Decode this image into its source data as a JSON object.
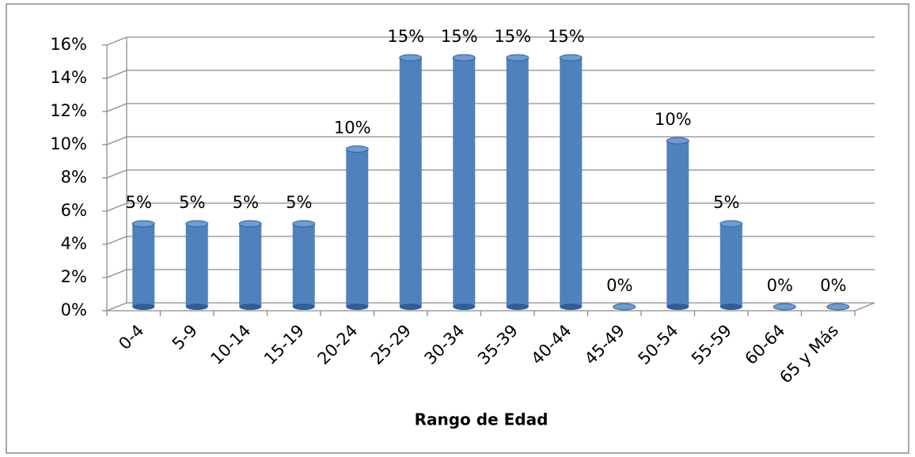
{
  "chart_data": {
    "type": "bar",
    "x_label": "Rango de Edad",
    "categories": [
      "0-4",
      "5-9",
      "10-14",
      "15-19",
      "20-24",
      "25-29",
      "30-34",
      "35-39",
      "40-44",
      "45-49",
      "50-54",
      "55-59",
      "60-64",
      "65 y Más"
    ],
    "values": [
      5,
      5,
      5,
      5,
      9.5,
      15,
      15,
      15,
      15,
      0,
      10,
      5,
      0,
      0
    ],
    "value_labels": [
      "5%",
      "5%",
      "5%",
      "5%",
      "10%",
      "15%",
      "15%",
      "15%",
      "15%",
      "0%",
      "10%",
      "5%",
      "0%",
      "0%"
    ],
    "color": "#4f81bd",
    "ylim": [
      0,
      16
    ],
    "yticks": [
      {
        "value": 0,
        "label": "0%"
      },
      {
        "value": 2,
        "label": "2%"
      },
      {
        "value": 4,
        "label": "4%"
      },
      {
        "value": 6,
        "label": "6%"
      },
      {
        "value": 8,
        "label": "8%"
      },
      {
        "value": 10,
        "label": "10%"
      },
      {
        "value": 12,
        "label": "12%"
      },
      {
        "value": 14,
        "label": "14%"
      },
      {
        "value": 16,
        "label": "16%"
      }
    ],
    "grid": true
  }
}
